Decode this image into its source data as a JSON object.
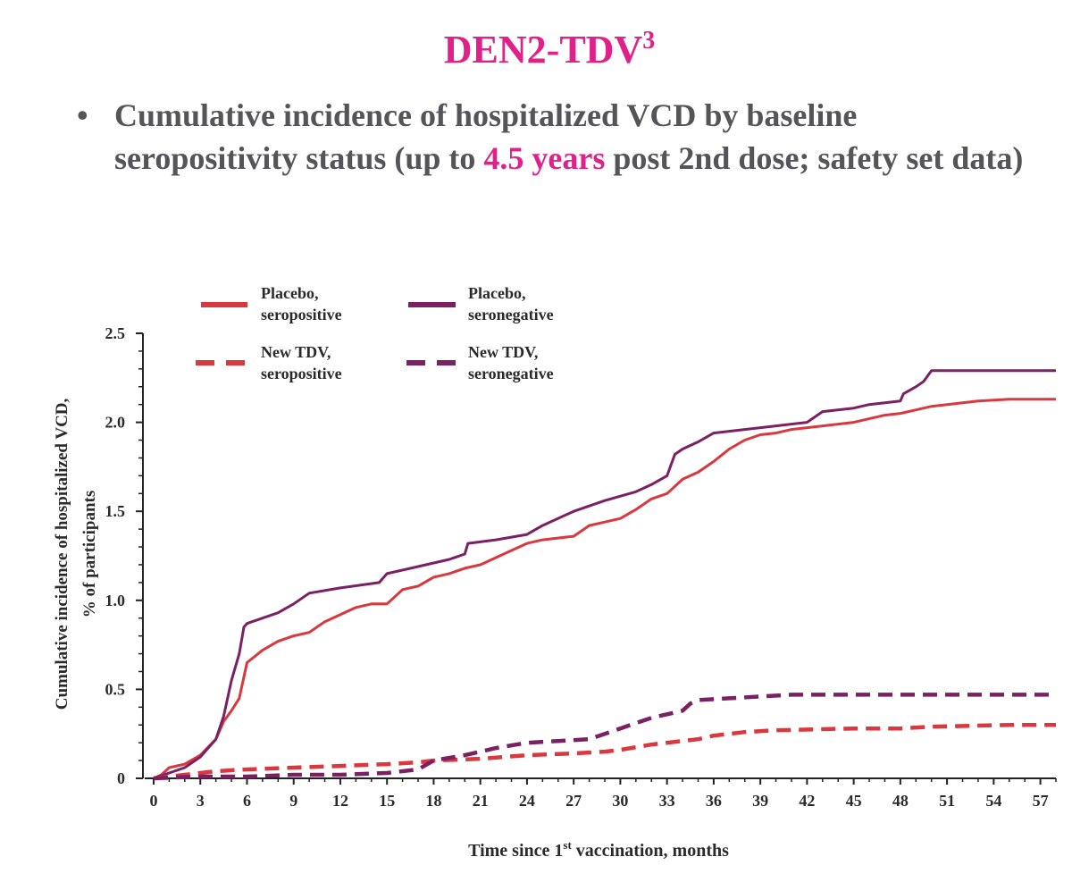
{
  "header": {
    "title": "DEN2-TDV",
    "title_sup": "3"
  },
  "bullet": {
    "marker": "•",
    "text_before": "Cumulative incidence of hospitalized VCD by baseline seropositivity status (up to ",
    "highlight": "4.5 years",
    "text_after": " post 2nd dose; safety set data)"
  },
  "colors": {
    "accent": "#e0218a",
    "bullet_text": "#555559",
    "seropositive": "#d9383e",
    "seronegative": "#7a2063"
  },
  "chart_data": {
    "type": "line",
    "xlabel": "Time since 1st vaccination, months",
    "xlabel_parts": [
      "Time since 1",
      "st",
      " vaccination, months"
    ],
    "ylabel_lines": [
      "Cumulative incidence of hospitalized VCD,",
      "% of participants"
    ],
    "xlim": [
      0,
      58
    ],
    "ylim": [
      0,
      2.5
    ],
    "x_ticks": [
      "0",
      "3",
      "6",
      "9",
      "12",
      "15",
      "18",
      "21",
      "24",
      "27",
      "30",
      "33",
      "36",
      "39",
      "42",
      "45",
      "48",
      "51",
      "54",
      "57"
    ],
    "y_ticks": [
      "0",
      "0.5",
      "1.0",
      "1.5",
      "2.0",
      "2.5"
    ],
    "grid": false,
    "legend_position": "top-left",
    "series": [
      {
        "name": "Placebo, seropositive",
        "legend_lines": [
          "Placebo,",
          "seropositive"
        ],
        "color": "#d9383e",
        "dash": "solid",
        "points": [
          [
            0,
            0
          ],
          [
            0.5,
            0.02
          ],
          [
            1,
            0.06
          ],
          [
            2,
            0.08
          ],
          [
            3,
            0.13
          ],
          [
            4,
            0.22
          ],
          [
            4.5,
            0.32
          ],
          [
            5,
            0.38
          ],
          [
            5.5,
            0.45
          ],
          [
            6,
            0.65
          ],
          [
            7,
            0.72
          ],
          [
            8,
            0.77
          ],
          [
            9,
            0.8
          ],
          [
            10,
            0.82
          ],
          [
            11,
            0.88
          ],
          [
            12,
            0.92
          ],
          [
            13,
            0.96
          ],
          [
            14,
            0.98
          ],
          [
            15,
            0.98
          ],
          [
            16,
            1.06
          ],
          [
            17,
            1.08
          ],
          [
            18,
            1.13
          ],
          [
            19,
            1.15
          ],
          [
            20,
            1.18
          ],
          [
            21,
            1.2
          ],
          [
            22,
            1.24
          ],
          [
            23,
            1.28
          ],
          [
            24,
            1.32
          ],
          [
            25,
            1.34
          ],
          [
            27,
            1.36
          ],
          [
            28,
            1.42
          ],
          [
            29,
            1.44
          ],
          [
            30,
            1.46
          ],
          [
            31,
            1.51
          ],
          [
            32,
            1.57
          ],
          [
            33,
            1.6
          ],
          [
            34,
            1.68
          ],
          [
            35,
            1.72
          ],
          [
            36,
            1.78
          ],
          [
            37,
            1.85
          ],
          [
            38,
            1.9
          ],
          [
            39,
            1.93
          ],
          [
            40,
            1.94
          ],
          [
            41,
            1.96
          ],
          [
            42,
            1.97
          ],
          [
            43,
            1.98
          ],
          [
            44,
            1.99
          ],
          [
            45,
            2.0
          ],
          [
            46,
            2.02
          ],
          [
            47,
            2.04
          ],
          [
            48,
            2.05
          ],
          [
            49,
            2.07
          ],
          [
            50,
            2.09
          ],
          [
            51,
            2.1
          ],
          [
            52,
            2.11
          ],
          [
            53,
            2.12
          ],
          [
            55,
            2.13
          ],
          [
            58,
            2.13
          ]
        ]
      },
      {
        "name": "Placebo, seronegative",
        "legend_lines": [
          "Placebo,",
          "seronegative"
        ],
        "color": "#7a2063",
        "dash": "solid",
        "points": [
          [
            0,
            0
          ],
          [
            1,
            0.03
          ],
          [
            2,
            0.06
          ],
          [
            3,
            0.12
          ],
          [
            4,
            0.22
          ],
          [
            4.5,
            0.35
          ],
          [
            5,
            0.55
          ],
          [
            5.5,
            0.7
          ],
          [
            5.8,
            0.85
          ],
          [
            6,
            0.87
          ],
          [
            7,
            0.9
          ],
          [
            8,
            0.93
          ],
          [
            9,
            0.98
          ],
          [
            10,
            1.04
          ],
          [
            12,
            1.07
          ],
          [
            14.5,
            1.1
          ],
          [
            15,
            1.15
          ],
          [
            17,
            1.19
          ],
          [
            19,
            1.23
          ],
          [
            20,
            1.26
          ],
          [
            20.2,
            1.32
          ],
          [
            22,
            1.34
          ],
          [
            24,
            1.37
          ],
          [
            25,
            1.42
          ],
          [
            27,
            1.5
          ],
          [
            29,
            1.56
          ],
          [
            31,
            1.61
          ],
          [
            32,
            1.65
          ],
          [
            33,
            1.7
          ],
          [
            33.5,
            1.82
          ],
          [
            34,
            1.85
          ],
          [
            35,
            1.89
          ],
          [
            36,
            1.94
          ],
          [
            38,
            1.96
          ],
          [
            40,
            1.98
          ],
          [
            42,
            2.0
          ],
          [
            43,
            2.06
          ],
          [
            45,
            2.08
          ],
          [
            46,
            2.1
          ],
          [
            48,
            2.12
          ],
          [
            48.2,
            2.16
          ],
          [
            49,
            2.2
          ],
          [
            49.5,
            2.23
          ],
          [
            50,
            2.29
          ],
          [
            58,
            2.29
          ]
        ]
      },
      {
        "name": "New TDV, seropositive",
        "legend_lines": [
          "New TDV,",
          "seropositive"
        ],
        "color": "#d9383e",
        "dash": "dashed",
        "points": [
          [
            0,
            0
          ],
          [
            2,
            0.02
          ],
          [
            3,
            0.03
          ],
          [
            4,
            0.04
          ],
          [
            6,
            0.05
          ],
          [
            9,
            0.06
          ],
          [
            12,
            0.07
          ],
          [
            15,
            0.08
          ],
          [
            17,
            0.09
          ],
          [
            18,
            0.1
          ],
          [
            21,
            0.11
          ],
          [
            24,
            0.13
          ],
          [
            27,
            0.14
          ],
          [
            29,
            0.15
          ],
          [
            30,
            0.16
          ],
          [
            32,
            0.19
          ],
          [
            35,
            0.22
          ],
          [
            36,
            0.24
          ],
          [
            38,
            0.26
          ],
          [
            40,
            0.27
          ],
          [
            45,
            0.28
          ],
          [
            48,
            0.28
          ],
          [
            50,
            0.29
          ],
          [
            55,
            0.3
          ],
          [
            58,
            0.3
          ]
        ]
      },
      {
        "name": "New TDV, seronegative",
        "legend_lines": [
          "New TDV,",
          "seronegative"
        ],
        "color": "#7a2063",
        "dash": "dashed",
        "points": [
          [
            0,
            0
          ],
          [
            3,
            0.01
          ],
          [
            6,
            0.01
          ],
          [
            9,
            0.02
          ],
          [
            12,
            0.02
          ],
          [
            15,
            0.03
          ],
          [
            17,
            0.05
          ],
          [
            18,
            0.1
          ],
          [
            20,
            0.13
          ],
          [
            22,
            0.17
          ],
          [
            24,
            0.2
          ],
          [
            26,
            0.21
          ],
          [
            28,
            0.22
          ],
          [
            29,
            0.25
          ],
          [
            30,
            0.28
          ],
          [
            31,
            0.31
          ],
          [
            32,
            0.34
          ],
          [
            33,
            0.36
          ],
          [
            34,
            0.38
          ],
          [
            34.5,
            0.42
          ],
          [
            35,
            0.44
          ],
          [
            37,
            0.45
          ],
          [
            39,
            0.46
          ],
          [
            41,
            0.47
          ],
          [
            45,
            0.47
          ],
          [
            50,
            0.47
          ],
          [
            58,
            0.47
          ]
        ]
      }
    ]
  }
}
